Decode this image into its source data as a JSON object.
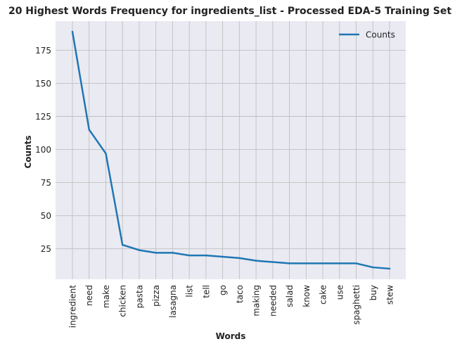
{
  "chart_data": {
    "type": "line",
    "title": "20 Highest Words Frequency for ingredients_list - Processed EDA-5 Training Set",
    "xlabel": "Words",
    "ylabel": "Counts",
    "categories": [
      "ingredient",
      "need",
      "make",
      "chicken",
      "pasta",
      "pizza",
      "lasagna",
      "list",
      "tell",
      "go",
      "taco",
      "making",
      "needed",
      "salad",
      "know",
      "cake",
      "use",
      "spaghetti",
      "buy",
      "stew"
    ],
    "series": [
      {
        "name": "Counts",
        "values": [
          189,
          115,
          97,
          28,
          24,
          22,
          22,
          20,
          20,
          19,
          18,
          16,
          15,
          14,
          14,
          14,
          14,
          14,
          11,
          10
        ],
        "color": "#1f77b4"
      }
    ],
    "ylim": [
      2,
      197
    ],
    "yticks": [
      25,
      50,
      75,
      100,
      125,
      150,
      175
    ],
    "legend": "top-right",
    "grid": true,
    "plot_background": "#eaeaf2",
    "grid_color": "#c0c0c0"
  }
}
